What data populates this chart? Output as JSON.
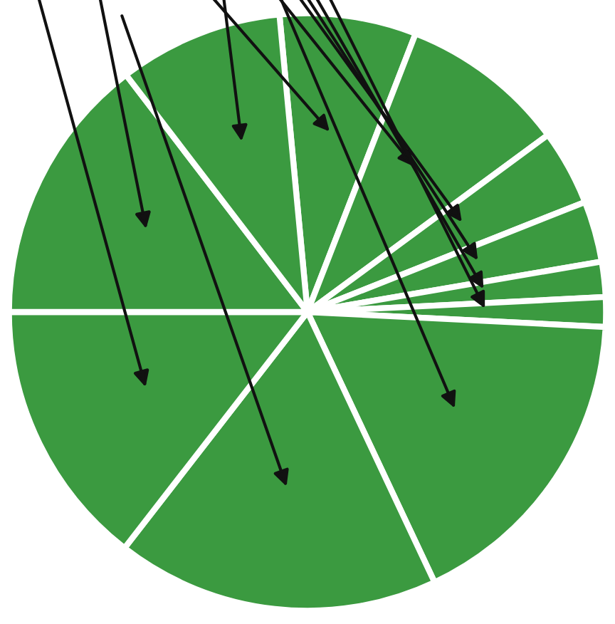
{
  "chart_data": {
    "type": "pie",
    "categories": [
      null,
      null,
      null,
      null,
      null,
      null,
      null,
      null,
      null,
      null,
      null
    ],
    "values": [
      7.4,
      9.0,
      4.1,
      3.3,
      1.9,
      1.6,
      17.2,
      17.5,
      14.5,
      14.6,
      8.9
    ],
    "colors": [
      "#3b9a40",
      "#3b9a40",
      "#3b9a40",
      "#3b9a40",
      "#3b9a40",
      "#3b9a40",
      "#3b9a40",
      "#3b9a40",
      "#3b9a40",
      "#3b9a40",
      "#3b9a40"
    ],
    "legend": false
  }
}
